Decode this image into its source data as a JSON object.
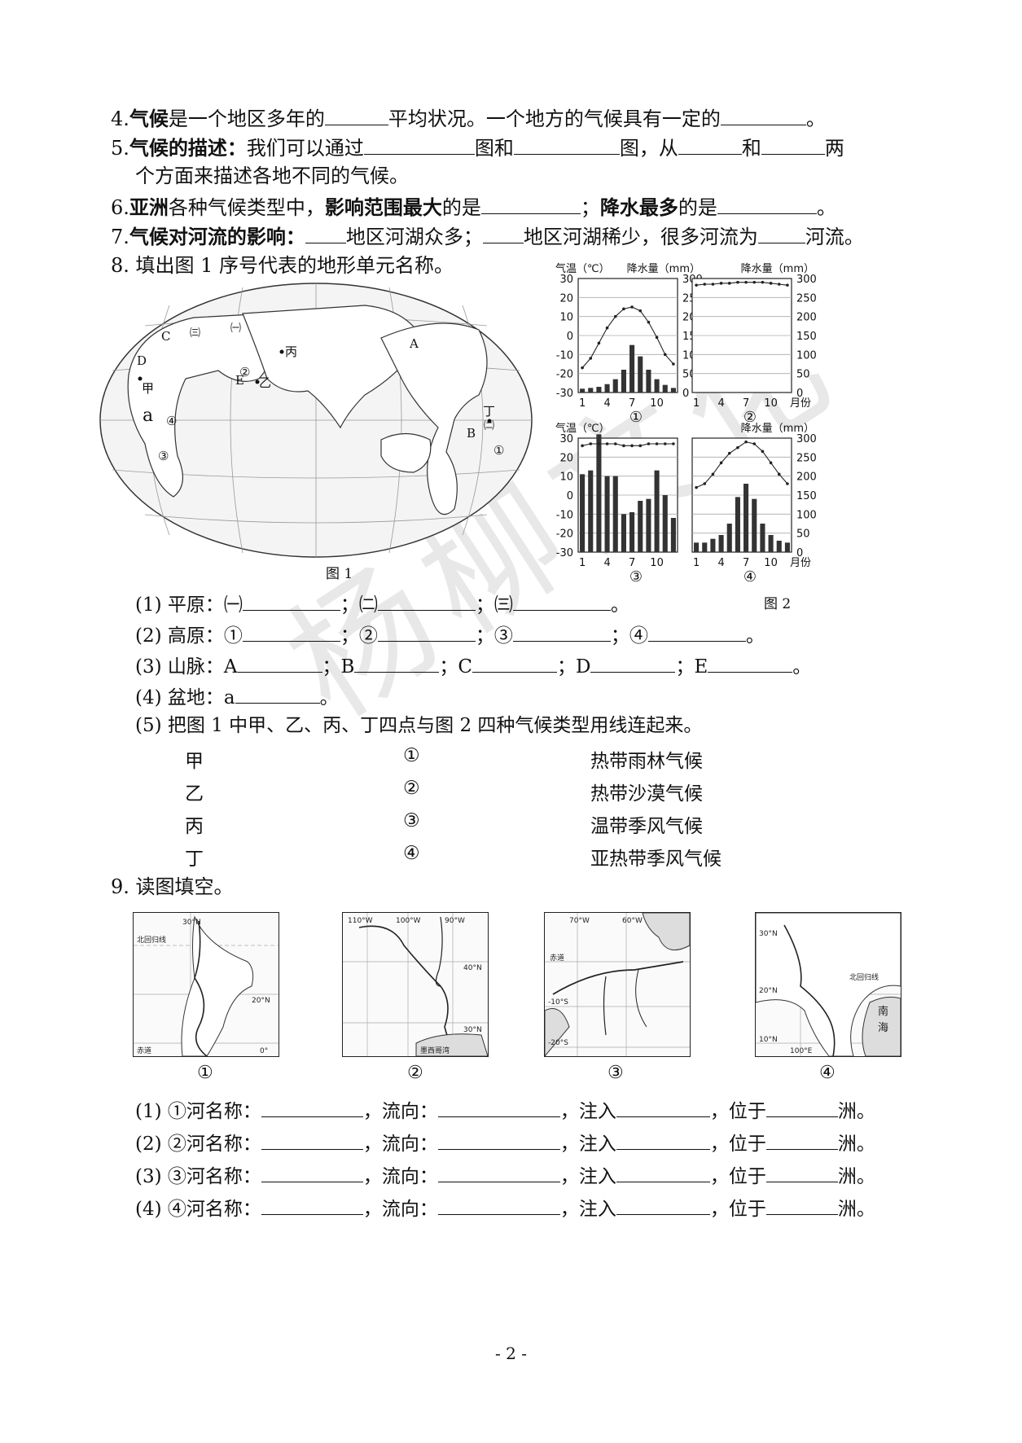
{
  "q4": {
    "num": "4.",
    "term": "气候",
    "t1": "是一个地区多年的",
    "t2": "平均状况。一个地方的气候具有一定的",
    "t3": "。"
  },
  "q5": {
    "num": "5.",
    "term": "气候的描述：",
    "t1": "我们可以通过",
    "t2": "图和",
    "t3": "图，从",
    "t4": "和",
    "t5": "两",
    "t6": "个方面来描述各地不同的气候。"
  },
  "q6": {
    "num": "6.",
    "term": "亚洲",
    "t1": "各种气候类型中，",
    "term2": "影响范围最大",
    "t2": "的是",
    "t3": "；",
    "term3": "降水最多",
    "t4": "的是",
    "t5": "。"
  },
  "q7": {
    "num": "7.",
    "term": "气候对河流的影响：",
    "t1": "地区河湖众多；",
    "t2": "地区河湖稀少，很多河流为",
    "t3": "河流。"
  },
  "q8": {
    "title": "8. 填出图 1 序号代表的地形单元名称。",
    "fig1_caption": "图 1",
    "fig2_caption": "图 2",
    "map_labels": {
      "A": "A",
      "B": "B",
      "C": "C",
      "D": "D",
      "E": "E",
      "a": "a",
      "jia": "甲",
      "yi": "乙",
      "bing": "丙",
      "ding": "丁",
      "p1": "㈠",
      "p2": "㈡",
      "p3": "㈢",
      "c1": "①",
      "c2": "②",
      "c3": "③",
      "c4": "④"
    },
    "sub1": {
      "label": "(1) 平原：",
      "a": "㈠",
      "b": "；㈡",
      "c": "；㈢",
      "end": "。"
    },
    "sub2": {
      "label": "(2) 高原：",
      "a": "①",
      "b": "；②",
      "c": "；③",
      "d": "；④",
      "end": "。"
    },
    "sub3": {
      "label": "(3) 山脉：",
      "a": "A",
      "b": "；B",
      "c": "；C",
      "d": "；D",
      "e": "；E",
      "end": "。"
    },
    "sub4": {
      "label": "(4) 盆地：",
      "a": "a",
      "end": "。"
    },
    "sub5": "(5) 把图 1 中甲、乙、丙、丁四点与图 2 四种气候类型用线连起来。",
    "match_left": [
      "甲",
      "乙",
      "丙",
      "丁"
    ],
    "match_mid": [
      "①",
      "②",
      "③",
      "④"
    ],
    "match_right": [
      "热带雨林气候",
      "热带沙漠气候",
      "温带季风气候",
      "亚热带季风气候"
    ]
  },
  "q9": {
    "title": "9. 读图填空。",
    "map_nums": [
      "①",
      "②",
      "③",
      "④"
    ],
    "map1": {
      "lat30": "30°N",
      "tropic": "北回归线",
      "lat20": "20°N",
      "equator": "赤道",
      "lon0": "0°"
    },
    "map2": {
      "lon110": "110°W",
      "lon100": "100°W",
      "lon90": "90°W",
      "lat40": "40°N",
      "lat30": "30°N",
      "gulf": "墨西哥湾"
    },
    "map3": {
      "lon70": "70°W",
      "lon60": "60°W",
      "equator": "赤道",
      "s10": "-10°S",
      "s20": "-20°S"
    },
    "map4": {
      "lat30": "30°N",
      "tropic": "北回归线",
      "lat20": "20°N",
      "sea1": "南",
      "sea2": "海",
      "lat10": "10°N",
      "lon100": "100°E"
    },
    "rows": [
      {
        "label": "(1) ①河名称：",
        "flow": "，流向：",
        "into": "，注入",
        "loc": "，位于",
        "end": "洲。"
      },
      {
        "label": "(2) ②河名称：",
        "flow": "，流向：",
        "into": "，注入",
        "loc": "，位于",
        "end": "洲。"
      },
      {
        "label": "(3) ③河名称：",
        "flow": "，流向：",
        "into": "，注入",
        "loc": "，位于",
        "end": "洲。"
      },
      {
        "label": "(4) ④河名称：",
        "flow": "，流向：",
        "into": "，注入",
        "loc": "，位于",
        "end": "洲。"
      }
    ]
  },
  "watermark": "杨柳文化",
  "page_number": "- 2 -",
  "chart_data": [
    {
      "type": "bar",
      "id": "①",
      "temp_label": "气温（℃）",
      "precip_label": "降水量（mm）",
      "xlabel": "",
      "months": [
        1,
        2,
        3,
        4,
        5,
        6,
        7,
        8,
        9,
        10,
        11,
        12
      ],
      "x_ticks": [
        "1",
        "4",
        "7",
        "10"
      ],
      "temp_ticks": [
        "30",
        "20",
        "10",
        "0",
        "-10",
        "-20",
        "-30"
      ],
      "precip_ticks": [
        "300",
        "250",
        "200",
        "150",
        "100",
        "50",
        "0"
      ],
      "temp": [
        -17,
        -12,
        -4,
        4,
        10,
        14,
        15,
        13,
        7,
        -1,
        -10,
        -15
      ],
      "precip": [
        10,
        12,
        15,
        22,
        35,
        60,
        125,
        95,
        60,
        35,
        20,
        12
      ],
      "ylim_temp": [
        -30,
        30
      ],
      "ylim_precip": [
        0,
        300
      ]
    },
    {
      "type": "bar",
      "id": "②",
      "temp_label": "",
      "precip_label": "降水量（mm）",
      "xlabel": "月份",
      "months": [
        1,
        2,
        3,
        4,
        5,
        6,
        7,
        8,
        9,
        10,
        11,
        12
      ],
      "x_ticks": [
        "1",
        "4",
        "7",
        "10"
      ],
      "temp_ticks": [],
      "precip_ticks": [
        "300",
        "250",
        "200",
        "150",
        "100",
        "50",
        "0"
      ],
      "temp": [
        26.5,
        27,
        27,
        27.5,
        27.5,
        28,
        28,
        28,
        28,
        27.5,
        27,
        26.5
      ],
      "precip": [
        0,
        0,
        0,
        0,
        0,
        0,
        0,
        0,
        0,
        0,
        0,
        0
      ],
      "ylim_temp": [
        -30,
        30
      ],
      "ylim_precip": [
        0,
        300
      ]
    },
    {
      "type": "bar",
      "id": "③",
      "temp_label": "气温（℃）",
      "precip_label": "",
      "xlabel": "",
      "months": [
        1,
        2,
        3,
        4,
        5,
        6,
        7,
        8,
        9,
        10,
        11,
        12
      ],
      "x_ticks": [
        "1",
        "4",
        "7",
        "10"
      ],
      "temp_ticks": [
        "30",
        "20",
        "10",
        "0",
        "-10",
        "-20",
        "-30"
      ],
      "precip_ticks": [],
      "temp": [
        26,
        27,
        27,
        27,
        27,
        26,
        26,
        26,
        27,
        27,
        27,
        27
      ],
      "precip": [
        205,
        215,
        310,
        200,
        200,
        100,
        105,
        135,
        140,
        215,
        150,
        90
      ],
      "ylim_temp": [
        -30,
        30
      ],
      "ylim_precip": [
        0,
        300
      ]
    },
    {
      "type": "bar",
      "id": "④",
      "temp_label": "",
      "precip_label": "降水量（mm）",
      "xlabel": "月份",
      "months": [
        1,
        2,
        3,
        4,
        5,
        6,
        7,
        8,
        9,
        10,
        11,
        12
      ],
      "x_ticks": [
        "1",
        "4",
        "7",
        "10"
      ],
      "temp_ticks": [],
      "precip_ticks": [
        "300",
        "250",
        "200",
        "150",
        "100",
        "50",
        "0"
      ],
      "temp": [
        4,
        6,
        11,
        17,
        22,
        25,
        28,
        27,
        23,
        17,
        11,
        6
      ],
      "precip": [
        25,
        25,
        35,
        45,
        75,
        145,
        180,
        140,
        75,
        45,
        30,
        25
      ],
      "ylim_temp": [
        -30,
        30
      ],
      "ylim_precip": [
        0,
        300
      ]
    }
  ]
}
